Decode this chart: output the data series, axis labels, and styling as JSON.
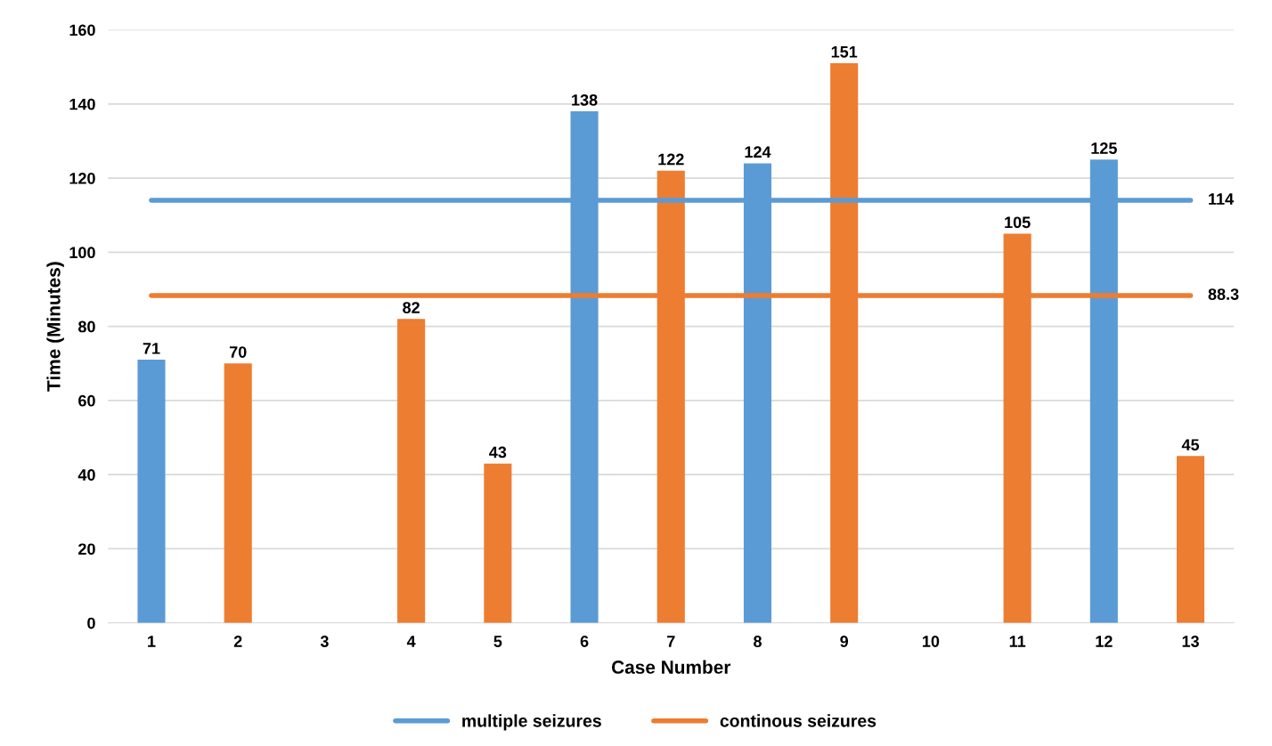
{
  "chart_data": {
    "type": "bar",
    "xlabel": "Case Number",
    "ylabel": "Time (Minutes)",
    "categories": [
      "1",
      "2",
      "3",
      "4",
      "5",
      "6",
      "7",
      "8",
      "9",
      "10",
      "11",
      "12",
      "13"
    ],
    "series": [
      {
        "name": "multiple seizures",
        "color": "#5b9bd5",
        "values": [
          71,
          null,
          null,
          null,
          null,
          138,
          null,
          124,
          null,
          null,
          null,
          125,
          null
        ]
      },
      {
        "name": "continous seizures",
        "color": "#ed7d31",
        "values": [
          null,
          70,
          null,
          82,
          43,
          null,
          122,
          null,
          151,
          null,
          105,
          null,
          45
        ]
      }
    ],
    "ylim": [
      0,
      160
    ],
    "yticks": [
      0,
      20,
      40,
      60,
      80,
      100,
      120,
      140,
      160
    ],
    "ref_lines": [
      {
        "axis": "y",
        "value": 114,
        "label": "114",
        "color": "#5b9bd5"
      },
      {
        "axis": "y",
        "value": 88.3,
        "label": "88.3",
        "color": "#ed7d31"
      }
    ],
    "data_labels": true,
    "grid": "y",
    "legend": "bottom"
  }
}
